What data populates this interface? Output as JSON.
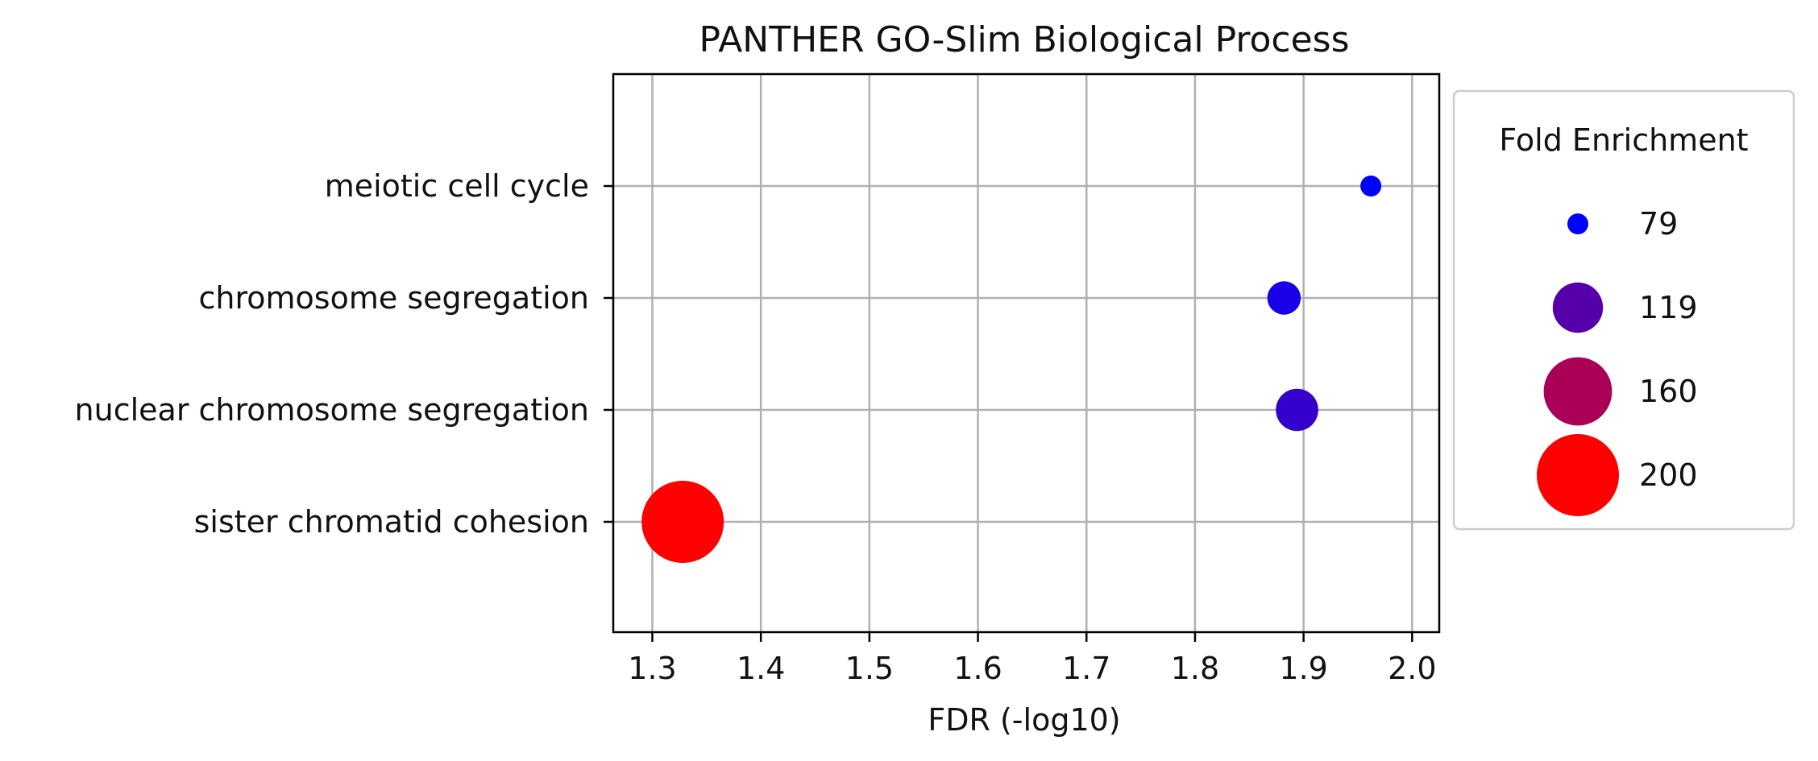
{
  "chart_data": {
    "type": "scatter",
    "title": "PANTHER GO-Slim Biological Process",
    "xlabel": "FDR (-log10)",
    "ylabel": "",
    "xlim": [
      1.264,
      2.025
    ],
    "xticks": [
      "1.3",
      "1.4",
      "1.5",
      "1.6",
      "1.7",
      "1.8",
      "1.9",
      "2.0"
    ],
    "grid": true,
    "categories": [
      "meiotic cell cycle",
      "chromosome segregation",
      "nuclear chromosome segregation",
      "sister chromatid cohesion"
    ],
    "points": [
      {
        "category": "meiotic cell cycle",
        "fdr": 1.962,
        "fold_enrichment": 79,
        "color": "#0000ff"
      },
      {
        "category": "chromosome segregation",
        "fdr": 1.882,
        "fold_enrichment": 92,
        "color": "#1a00e6"
      },
      {
        "category": "nuclear chromosome segregation",
        "fdr": 1.894,
        "fold_enrichment": 105,
        "color": "#3300cc"
      },
      {
        "category": "sister chromatid cohesion",
        "fdr": 1.328,
        "fold_enrichment": 200,
        "color": "#ff0000"
      }
    ],
    "size_range": [
      79,
      200
    ],
    "legend": {
      "title": "Fold Enrichment",
      "placement": "right, outside plot",
      "entries": [
        {
          "label": "79",
          "value": 79,
          "color": "#0000ff"
        },
        {
          "label": "119",
          "value": 119,
          "color": "#5500aa"
        },
        {
          "label": "160",
          "value": 160,
          "color": "#aa0055"
        },
        {
          "label": "200",
          "value": 200,
          "color": "#ff0000"
        }
      ]
    }
  }
}
